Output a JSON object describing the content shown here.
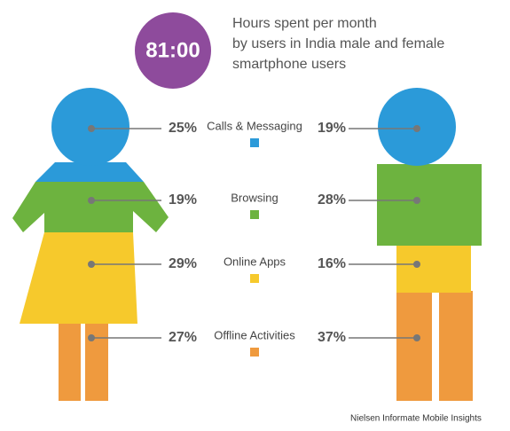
{
  "header": {
    "badge": "81:00",
    "lines": [
      "Hours spent per month",
      "by users in India male and female",
      "smartphone users"
    ]
  },
  "rows": [
    {
      "label": "Calls & Messaging",
      "color": "#2b9ad9",
      "female": "25%",
      "male": "19%"
    },
    {
      "label": "Browsing",
      "color": "#6db33f",
      "female": "19%",
      "male": "28%"
    },
    {
      "label": "Online Apps",
      "color": "#f6c92c",
      "female": "29%",
      "male": "16%"
    },
    {
      "label": "Offline Activities",
      "color": "#ef9a3e",
      "female": "27%",
      "male": "37%"
    }
  ],
  "source": "Nielsen Informate Mobile Insights"
}
